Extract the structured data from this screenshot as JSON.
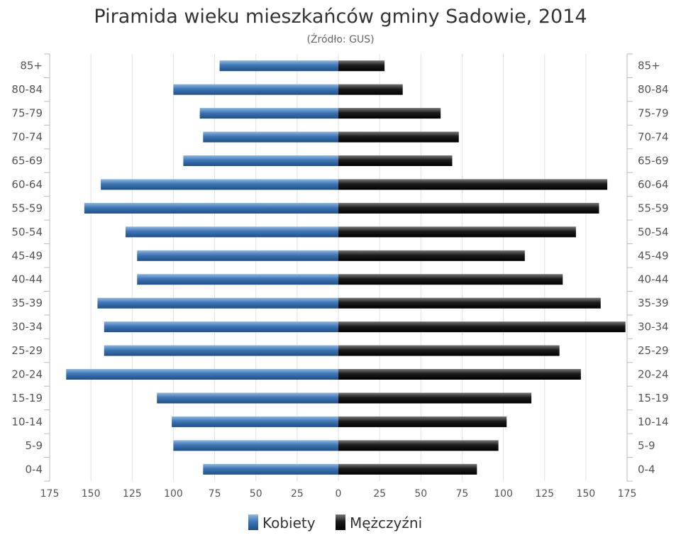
{
  "chart_data": {
    "type": "bar",
    "orientation": "horizontal-population-pyramid",
    "title": "Piramida wieku mieszkańców gminy Sadowie, 2014",
    "subtitle": "(Źródło: GUS)",
    "categories": [
      "0-4",
      "5-9",
      "10-14",
      "15-19",
      "20-24",
      "25-29",
      "30-34",
      "35-39",
      "40-44",
      "45-49",
      "50-54",
      "55-59",
      "60-64",
      "65-69",
      "70-74",
      "75-79",
      "80-84",
      "85+"
    ],
    "series": [
      {
        "name": "Kobiety",
        "side": "left",
        "color": "#3a6ea5",
        "values": [
          82,
          100,
          101,
          110,
          165,
          142,
          142,
          146,
          122,
          122,
          129,
          154,
          144,
          94,
          82,
          84,
          100,
          72
        ]
      },
      {
        "name": "Mężczyźni",
        "side": "right",
        "color": "#1a1a1a",
        "values": [
          84,
          97,
          102,
          117,
          147,
          134,
          174,
          159,
          136,
          113,
          144,
          158,
          163,
          69,
          73,
          62,
          39,
          28
        ]
      }
    ],
    "xlim": [
      -175,
      175
    ],
    "xticks": [
      -175,
      -150,
      -125,
      -100,
      -75,
      -50,
      -25,
      0,
      25,
      50,
      75,
      100,
      125,
      150,
      175
    ],
    "xtick_labels": [
      "175",
      "150",
      "125",
      "100",
      "75",
      "50",
      "25",
      "0",
      "25",
      "50",
      "75",
      "100",
      "125",
      "150",
      "175"
    ],
    "grid": true,
    "legend_position": "bottom-center"
  }
}
